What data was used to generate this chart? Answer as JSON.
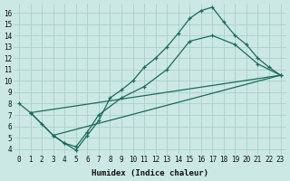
{
  "xlabel": "Humidex (Indice chaleur)",
  "bg_color": "#cce8e4",
  "line_color": "#1a6b5a",
  "grid_color": "#aacfcc",
  "xlim": [
    -0.5,
    23.5
  ],
  "ylim": [
    3.5,
    16.8
  ],
  "xticks": [
    0,
    1,
    2,
    3,
    4,
    5,
    6,
    7,
    8,
    9,
    10,
    11,
    12,
    13,
    14,
    15,
    16,
    17,
    18,
    19,
    20,
    21,
    22,
    23
  ],
  "yticks": [
    4,
    5,
    6,
    7,
    8,
    9,
    10,
    11,
    12,
    13,
    14,
    15,
    16
  ],
  "line1_x": [
    0,
    1,
    2,
    3,
    4,
    5,
    6,
    7,
    8,
    9,
    10,
    11,
    12,
    13,
    14,
    15,
    16,
    17,
    18,
    19,
    20,
    21,
    22,
    23
  ],
  "line1_y": [
    8.0,
    7.2,
    6.2,
    5.2,
    4.5,
    3.9,
    5.2,
    6.5,
    8.5,
    9.2,
    10.0,
    11.2,
    12.0,
    13.0,
    14.2,
    15.5,
    16.2,
    16.5,
    15.2,
    14.0,
    13.2,
    12.0,
    11.2,
    10.5
  ],
  "line2_x": [
    1,
    3,
    4,
    5,
    6,
    7,
    9,
    11,
    13,
    15,
    17,
    19,
    21,
    23
  ],
  "line2_y": [
    7.2,
    5.2,
    4.5,
    4.2,
    5.5,
    7.0,
    8.5,
    9.5,
    11.0,
    13.5,
    14.0,
    13.2,
    11.5,
    10.5
  ],
  "line3_x": [
    1,
    23
  ],
  "line3_y": [
    7.2,
    10.5
  ],
  "line4_x": [
    3,
    23
  ],
  "line4_y": [
    5.2,
    10.5
  ]
}
